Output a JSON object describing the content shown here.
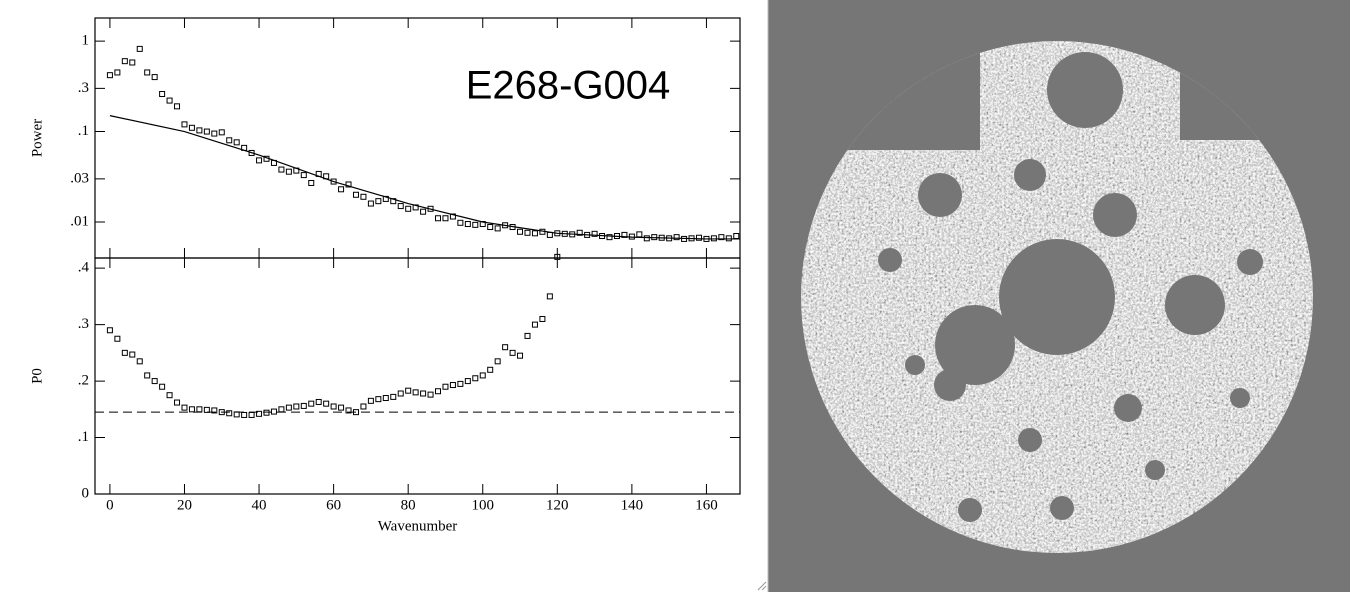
{
  "chart_data": [
    {
      "type": "scatter",
      "y_label": "Power",
      "annotation": "E268-G004",
      "yscale": "log",
      "xlim": [
        -4,
        169
      ],
      "xticks": [
        0,
        20,
        40,
        60,
        80,
        100,
        120,
        140,
        160
      ],
      "ylim": [
        0.004,
        1.8
      ],
      "yticks": [
        1,
        {
          "value": 0.3,
          "label": ".3"
        },
        {
          "value": 0.1,
          "label": ".1"
        },
        {
          "value": 0.03,
          "label": ".03"
        },
        {
          "value": 0.01,
          "label": ".01"
        }
      ],
      "series": [
        {
          "style": "markers",
          "color": "#000000",
          "x": [
            0,
            2,
            4,
            6,
            8,
            10,
            12,
            14,
            16,
            18,
            20,
            22,
            24,
            26,
            28,
            30,
            32,
            34,
            36,
            38,
            40,
            42,
            44,
            46,
            48,
            50,
            52,
            54,
            56,
            58,
            60,
            62,
            64,
            66,
            68,
            70,
            72,
            74,
            76,
            78,
            80,
            82,
            84,
            86,
            88,
            90,
            92,
            94,
            96,
            98,
            100,
            102,
            104,
            106,
            108,
            110,
            112,
            114,
            116,
            118,
            120,
            122,
            124,
            126,
            128,
            130,
            132,
            134,
            136,
            138,
            140,
            142,
            144,
            146,
            148,
            150,
            152,
            154,
            156,
            158,
            160,
            162,
            164,
            166,
            168
          ],
          "values": [
            0.42,
            0.45,
            0.6,
            0.58,
            0.82,
            0.45,
            0.4,
            0.26,
            0.22,
            0.19,
            0.12,
            0.11,
            0.103,
            0.1,
            0.095,
            0.098,
            0.08,
            0.076,
            0.066,
            0.058,
            0.048,
            0.05,
            0.045,
            0.038,
            0.036,
            0.037,
            0.033,
            0.027,
            0.034,
            0.032,
            0.028,
            0.023,
            0.026,
            0.02,
            0.019,
            0.016,
            0.017,
            0.018,
            0.017,
            0.015,
            0.014,
            0.0145,
            0.013,
            0.014,
            0.011,
            0.011,
            0.0115,
            0.0098,
            0.0095,
            0.0093,
            0.0095,
            0.0088,
            0.0085,
            0.0092,
            0.0088,
            0.0078,
            0.0076,
            0.0075,
            0.0078,
            0.0072,
            0.0075,
            0.0074,
            0.0073,
            0.0076,
            0.0072,
            0.0074,
            0.007,
            0.0068,
            0.007,
            0.0072,
            0.0069,
            0.0073,
            0.0066,
            0.0068,
            0.0067,
            0.0066,
            0.0068,
            0.0065,
            0.0066,
            0.0067,
            0.0065,
            0.0066,
            0.0068,
            0.0066,
            0.007
          ]
        },
        {
          "style": "line",
          "color": "#000000",
          "x": [
            0,
            20,
            40,
            60,
            80,
            100,
            120,
            140,
            160,
            169
          ],
          "values": [
            0.15,
            0.1,
            0.055,
            0.028,
            0.016,
            0.01,
            0.0075,
            0.0068,
            0.0065,
            0.0065
          ]
        }
      ]
    },
    {
      "type": "scatter",
      "y_label": "P0",
      "x_label": "Wavenumber",
      "xlim": [
        -4,
        169
      ],
      "xticks": [
        0,
        20,
        40,
        60,
        80,
        100,
        120,
        140,
        160
      ],
      "ylim": [
        0,
        0.418
      ],
      "yticks": [
        0,
        {
          "value": 0.1,
          "label": ".1"
        },
        {
          "value": 0.2,
          "label": ".2"
        },
        {
          "value": 0.3,
          "label": ".3"
        },
        {
          "value": 0.4,
          "label": ".4"
        }
      ],
      "hline": {
        "value": 0.145,
        "style": "dashed"
      },
      "series": [
        {
          "style": "markers",
          "color": "#000000",
          "x": [
            0,
            2,
            4,
            6,
            8,
            10,
            12,
            14,
            16,
            18,
            20,
            22,
            24,
            26,
            28,
            30,
            32,
            34,
            36,
            38,
            40,
            42,
            44,
            46,
            48,
            50,
            52,
            54,
            56,
            58,
            60,
            62,
            64,
            66,
            68,
            70,
            72,
            74,
            76,
            78,
            80,
            82,
            84,
            86,
            88,
            90,
            92,
            94,
            96,
            98,
            100,
            102,
            104,
            106,
            108,
            110,
            112,
            114,
            116,
            118,
            120
          ],
          "values": [
            0.29,
            0.275,
            0.25,
            0.247,
            0.235,
            0.21,
            0.2,
            0.19,
            0.175,
            0.162,
            0.153,
            0.15,
            0.15,
            0.149,
            0.148,
            0.145,
            0.143,
            0.141,
            0.14,
            0.14,
            0.142,
            0.144,
            0.146,
            0.15,
            0.153,
            0.155,
            0.156,
            0.16,
            0.163,
            0.16,
            0.155,
            0.153,
            0.148,
            0.145,
            0.155,
            0.165,
            0.168,
            0.17,
            0.172,
            0.178,
            0.183,
            0.18,
            0.178,
            0.176,
            0.182,
            0.19,
            0.193,
            0.195,
            0.2,
            0.205,
            0.21,
            0.22,
            0.235,
            0.26,
            0.25,
            0.245,
            0.28,
            0.3,
            0.31,
            0.35,
            0.42
          ]
        }
      ]
    }
  ]
}
